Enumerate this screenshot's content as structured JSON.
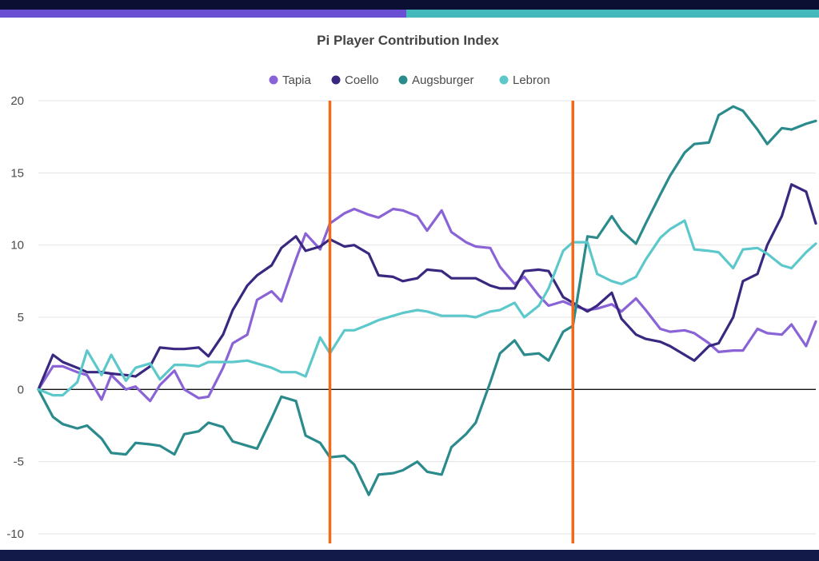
{
  "accent": {
    "top_bar_left": "#6a4fd2",
    "top_bar_right": "#44b9bb",
    "marker_line": "#f06a1a"
  },
  "chart_data": {
    "type": "line",
    "title": "Pi Player Contribution Index",
    "legend_position": "top-center",
    "xlabel": "",
    "ylabel": "",
    "ylim": [
      -10,
      20
    ],
    "yticks": [
      -10,
      -5,
      0,
      5,
      10,
      15,
      20
    ],
    "yticklabels": [
      "-10",
      "-5",
      "0",
      "5",
      "10",
      "15",
      "20"
    ],
    "xlim": [
      0,
      160
    ],
    "vertical_markers": [
      60,
      110
    ],
    "series": [
      {
        "name": "Tapia",
        "color": "#8a63d6",
        "x": [
          0,
          3,
          5,
          8,
          10,
          13,
          15,
          18,
          20,
          23,
          25,
          28,
          30,
          33,
          35,
          38,
          40,
          43,
          45,
          48,
          50,
          53,
          55,
          58,
          60,
          63,
          65,
          68,
          70,
          73,
          75,
          78,
          80,
          83,
          85,
          88,
          90,
          93,
          95,
          98,
          100,
          103,
          105,
          108,
          110,
          113,
          115,
          118,
          120,
          123,
          125,
          128,
          130,
          133,
          135,
          138,
          140,
          143,
          145,
          148,
          150,
          153,
          155,
          158,
          160
        ],
        "values": [
          0.0,
          1.6,
          1.6,
          1.2,
          1.0,
          -0.7,
          1.0,
          0.0,
          0.2,
          -0.8,
          0.3,
          1.3,
          0.0,
          -0.6,
          -0.5,
          1.5,
          3.2,
          3.8,
          6.2,
          6.8,
          6.1,
          9.0,
          10.8,
          9.7,
          11.5,
          12.2,
          12.5,
          12.1,
          11.9,
          12.5,
          12.4,
          12.0,
          11.0,
          12.4,
          10.9,
          10.2,
          9.9,
          9.8,
          8.5,
          7.3,
          7.8,
          6.5,
          5.8,
          6.1,
          5.8,
          5.5,
          5.6,
          5.9,
          5.4,
          6.3,
          5.5,
          4.2,
          4.0,
          4.1,
          3.9,
          3.2,
          2.6,
          2.7,
          2.7,
          4.2,
          3.9,
          3.8,
          4.5,
          3.0,
          4.7
        ]
      },
      {
        "name": "Coello",
        "color": "#3a2880",
        "x": [
          0,
          3,
          5,
          8,
          10,
          13,
          15,
          18,
          20,
          23,
          25,
          28,
          30,
          33,
          35,
          38,
          40,
          43,
          45,
          48,
          50,
          53,
          55,
          58,
          60,
          63,
          65,
          68,
          70,
          73,
          75,
          78,
          80,
          83,
          85,
          88,
          90,
          93,
          95,
          98,
          100,
          103,
          105,
          108,
          110,
          113,
          115,
          118,
          120,
          123,
          125,
          128,
          130,
          133,
          135,
          138,
          140,
          143,
          145,
          148,
          150,
          153,
          155,
          158,
          160
        ],
        "values": [
          0.0,
          2.4,
          1.9,
          1.5,
          1.2,
          1.2,
          1.1,
          1.0,
          0.9,
          1.6,
          2.9,
          2.8,
          2.8,
          2.9,
          2.3,
          3.8,
          5.5,
          7.2,
          7.9,
          8.6,
          9.8,
          10.6,
          9.6,
          9.9,
          10.4,
          9.9,
          10.0,
          9.4,
          7.9,
          7.8,
          7.5,
          7.7,
          8.3,
          8.2,
          7.7,
          7.7,
          7.7,
          7.2,
          7.0,
          7.0,
          8.2,
          8.3,
          8.2,
          6.4,
          6.0,
          5.4,
          5.8,
          6.7,
          4.9,
          3.8,
          3.5,
          3.3,
          3.0,
          2.4,
          2.0,
          3.0,
          3.2,
          5.0,
          7.5,
          8.0,
          10.0,
          12.0,
          14.2,
          13.7,
          11.5
        ]
      },
      {
        "name": "Augsburger",
        "color": "#2b8b8c",
        "x": [
          0,
          3,
          5,
          8,
          10,
          13,
          15,
          18,
          20,
          23,
          25,
          28,
          30,
          33,
          35,
          38,
          40,
          43,
          45,
          48,
          50,
          53,
          55,
          58,
          60,
          63,
          65,
          68,
          70,
          73,
          75,
          78,
          80,
          83,
          85,
          88,
          90,
          93,
          95,
          98,
          100,
          103,
          105,
          108,
          110,
          113,
          115,
          118,
          120,
          123,
          125,
          128,
          130,
          133,
          135,
          138,
          140,
          143,
          145,
          148,
          150,
          153,
          155,
          158,
          160
        ],
        "values": [
          0.0,
          -1.9,
          -2.4,
          -2.7,
          -2.5,
          -3.4,
          -4.4,
          -4.5,
          -3.7,
          -3.8,
          -3.9,
          -4.5,
          -3.1,
          -2.9,
          -2.3,
          -2.6,
          -3.6,
          -3.9,
          -4.1,
          -2.0,
          -0.5,
          -0.8,
          -3.2,
          -3.7,
          -4.7,
          -4.6,
          -5.2,
          -7.3,
          -5.9,
          -5.8,
          -5.6,
          -5.0,
          -5.7,
          -5.9,
          -4.0,
          -3.1,
          -2.3,
          0.5,
          2.5,
          3.4,
          2.4,
          2.5,
          2.0,
          4.0,
          4.4,
          10.6,
          10.5,
          12.0,
          11.0,
          10.1,
          11.5,
          13.5,
          14.8,
          16.4,
          17.0,
          17.1,
          19.0,
          19.6,
          19.3,
          18.0,
          17.0,
          18.1,
          18.0,
          18.4,
          18.6
        ]
      },
      {
        "name": "Lebron",
        "color": "#5cc8cc",
        "x": [
          0,
          3,
          5,
          8,
          10,
          13,
          15,
          18,
          20,
          23,
          25,
          28,
          30,
          33,
          35,
          38,
          40,
          43,
          45,
          48,
          50,
          53,
          55,
          58,
          60,
          63,
          65,
          68,
          70,
          73,
          75,
          78,
          80,
          83,
          85,
          88,
          90,
          93,
          95,
          98,
          100,
          103,
          105,
          108,
          110,
          113,
          115,
          118,
          120,
          123,
          125,
          128,
          130,
          133,
          135,
          138,
          140,
          143,
          145,
          148,
          150,
          153,
          155,
          158,
          160
        ],
        "values": [
          0.0,
          -0.4,
          -0.4,
          0.5,
          2.7,
          1.0,
          2.4,
          0.6,
          1.5,
          1.8,
          0.7,
          1.7,
          1.7,
          1.6,
          1.9,
          1.9,
          1.9,
          2.0,
          1.8,
          1.5,
          1.2,
          1.2,
          0.9,
          3.6,
          2.5,
          4.1,
          4.1,
          4.5,
          4.8,
          5.1,
          5.3,
          5.5,
          5.4,
          5.1,
          5.1,
          5.1,
          5.0,
          5.4,
          5.5,
          6.0,
          5.0,
          5.8,
          7.0,
          9.6,
          10.2,
          10.2,
          8.0,
          7.5,
          7.3,
          7.8,
          9.0,
          10.5,
          11.1,
          11.7,
          9.7,
          9.6,
          9.5,
          8.4,
          9.7,
          9.8,
          9.4,
          8.6,
          8.4,
          9.5,
          10.1
        ]
      }
    ]
  }
}
